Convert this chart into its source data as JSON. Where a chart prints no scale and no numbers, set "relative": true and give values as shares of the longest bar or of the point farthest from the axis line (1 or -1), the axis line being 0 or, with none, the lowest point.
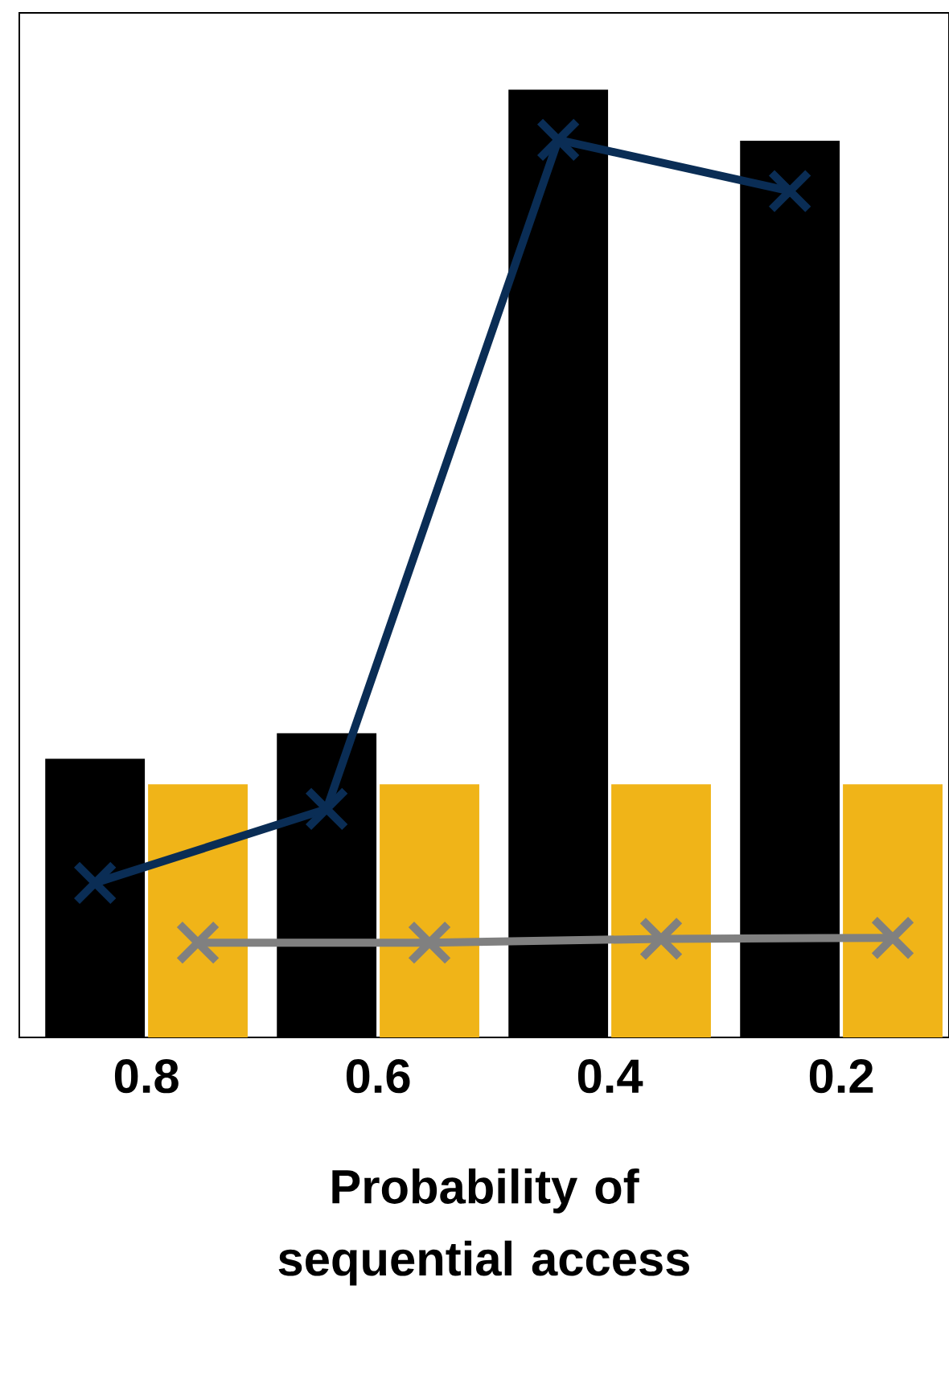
{
  "chart_data": {
    "type": "bar",
    "relative": true,
    "xlabel": "Probability of sequential access",
    "categories": [
      "0.8",
      "0.6",
      "0.4",
      "0.2"
    ],
    "series": [
      {
        "color": "#000000",
        "values": [
          0.294,
          0.321,
          1.0,
          0.946
        ]
      },
      {
        "color": "#f0b418",
        "values": [
          0.267,
          0.267,
          0.267,
          0.267
        ]
      },
      {
        "type": "line",
        "color": "#0a2d55",
        "marker": "cross",
        "values": [
          0.163,
          0.241,
          0.947,
          0.893
        ]
      },
      {
        "type": "line",
        "color": "#808080",
        "marker": "cross",
        "values": [
          0.1,
          0.1,
          0.104,
          0.105
        ]
      }
    ],
    "grid": false
  }
}
